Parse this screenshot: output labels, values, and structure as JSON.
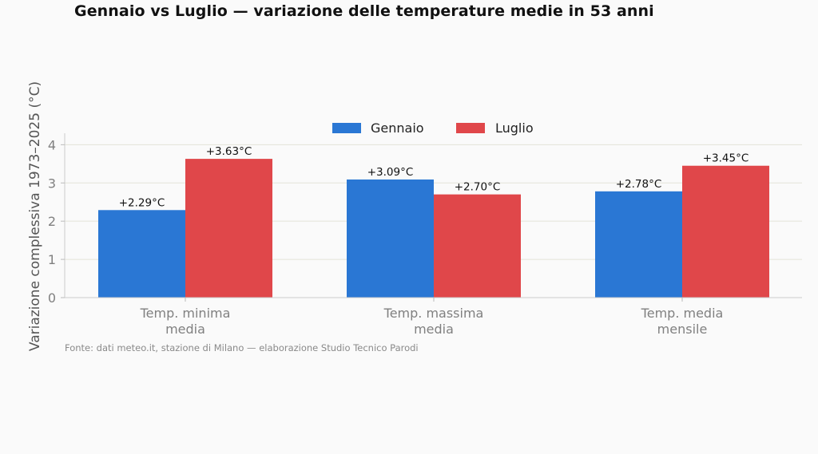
{
  "chart_data": {
    "type": "bar",
    "title": "Gennaio vs Luglio — variazione delle temperature medie in 53 anni",
    "ylabel": "Variazione complessiva 1973–2025 (°C)",
    "xlabel": "",
    "categories": [
      [
        "Temp. minima",
        "media"
      ],
      [
        "Temp. massima",
        "media"
      ],
      [
        "Temp. media",
        "mensile"
      ]
    ],
    "series": [
      {
        "name": "Gennaio",
        "color": "#2a77d4",
        "values": [
          2.29,
          3.09,
          2.78
        ],
        "labels": [
          "+2.29°C",
          "+3.09°C",
          "+2.78°C"
        ]
      },
      {
        "name": "Luglio",
        "color": "#e0474a",
        "values": [
          3.63,
          2.7,
          3.45
        ],
        "labels": [
          "+3.63°C",
          "+2.70°C",
          "+3.45°C"
        ]
      }
    ],
    "ylim": [
      0,
      4.3
    ],
    "yticks": [
      0,
      1,
      2,
      3,
      4
    ],
    "grid": true,
    "legend_position": "top-center",
    "source": "Fonte: dati meteo.it, stazione di Milano — elaborazione Studio Tecnico Parodi"
  }
}
